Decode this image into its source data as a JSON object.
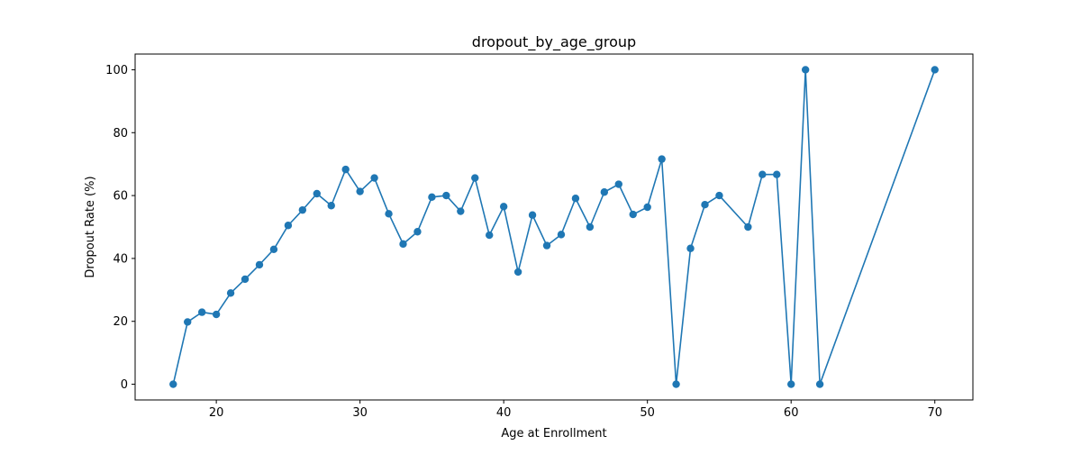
{
  "chart_data": {
    "type": "line",
    "title": "dropout_by_age_group",
    "xlabel": "Age at Enrollment",
    "ylabel": "Dropout Rate (%)",
    "xlim": [
      14.35,
      72.65
    ],
    "ylim": [
      -5,
      105
    ],
    "xticks": [
      20,
      30,
      40,
      50,
      60,
      70
    ],
    "yticks": [
      0,
      20,
      40,
      60,
      80,
      100
    ],
    "grid": false,
    "marker": "circle",
    "color": "#1f77b4",
    "series": [
      {
        "x": [
          17,
          18,
          19,
          20,
          21,
          22,
          23,
          24,
          25,
          26,
          27,
          28,
          29,
          30,
          31,
          32,
          33,
          34,
          35,
          36,
          37,
          38,
          39,
          40,
          41,
          42,
          43,
          44,
          45,
          46,
          47,
          48,
          49,
          50,
          51,
          52,
          53,
          54,
          55,
          57,
          58,
          59,
          60,
          61,
          62,
          70
        ],
        "values": [
          0,
          19.8,
          22.9,
          22.2,
          29.0,
          33.4,
          38.0,
          42.9,
          50.5,
          55.4,
          60.6,
          56.8,
          68.3,
          61.3,
          65.6,
          54.2,
          44.6,
          48.5,
          59.5,
          60.0,
          55.0,
          65.6,
          47.4,
          56.5,
          35.7,
          53.8,
          44.1,
          47.6,
          59.1,
          50.0,
          61.1,
          63.6,
          54.0,
          56.3,
          71.6,
          0,
          43.2,
          57.1,
          60.0,
          50.0,
          66.7,
          66.7,
          0,
          100,
          0,
          100
        ]
      }
    ]
  }
}
